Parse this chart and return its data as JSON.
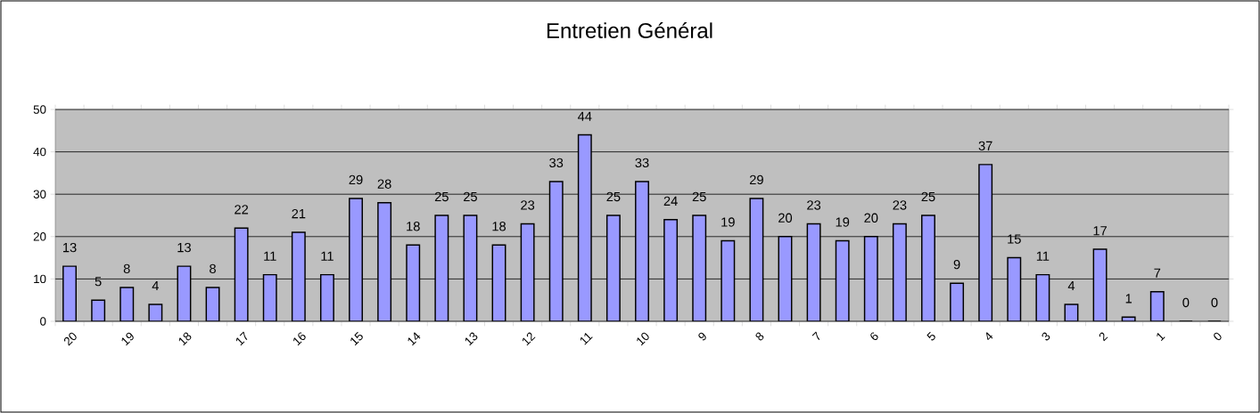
{
  "chart_data": {
    "type": "bar",
    "title": "Entretien Général",
    "categories": [
      "20",
      null,
      "19",
      null,
      "18",
      null,
      "17",
      null,
      "16",
      null,
      "15",
      null,
      "14",
      null,
      "13",
      null,
      "12",
      null,
      "11",
      null,
      "10",
      null,
      "9",
      null,
      "8",
      null,
      "7",
      null,
      "6",
      null,
      "5",
      null,
      "4",
      null,
      "3",
      null,
      "2",
      null,
      "1",
      null,
      "0"
    ],
    "values": [
      13,
      5,
      8,
      4,
      13,
      8,
      22,
      11,
      21,
      11,
      29,
      28,
      18,
      25,
      25,
      18,
      23,
      33,
      44,
      25,
      33,
      24,
      25,
      19,
      29,
      20,
      23,
      19,
      20,
      23,
      25,
      9,
      37,
      15,
      11,
      4,
      17,
      1,
      7,
      0,
      0
    ],
    "color": "#9999ff",
    "ylim": [
      0,
      50
    ],
    "yticks": [
      0,
      10,
      20,
      30,
      40,
      50
    ],
    "grid": "y",
    "data_labels": true
  }
}
